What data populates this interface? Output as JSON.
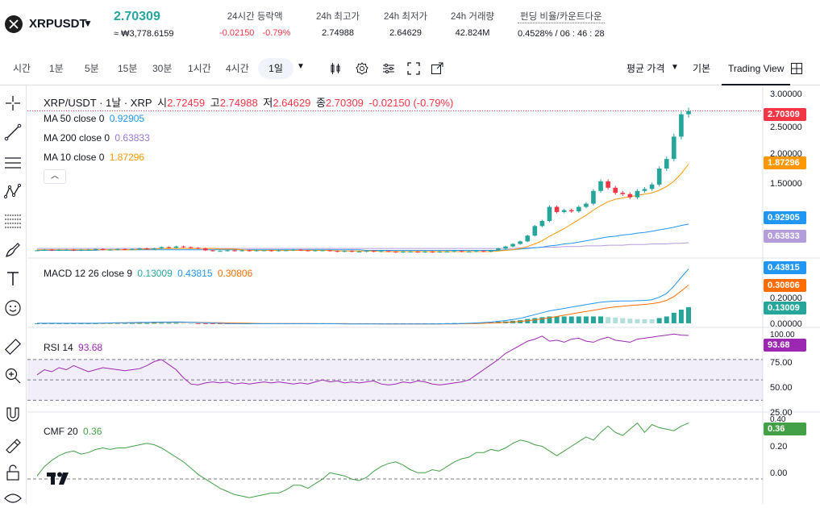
{
  "header": {
    "symbol": "XRPUSDT",
    "last_price": "2.70309",
    "krw_price": "≈ ₩3,778.6159",
    "stats": [
      {
        "label": "24시간 등락액",
        "value_a": "-0.02150",
        "value_b": "-0.79%"
      },
      {
        "label": "24h 최고가",
        "value": "2.74988"
      },
      {
        "label": "24h 최저가",
        "value": "2.64629"
      },
      {
        "label": "24h 거래량",
        "value": "42.824M"
      },
      {
        "label": "펀딩 비율/카운트다운",
        "value": "0.4528% / 06 : 46 : 28"
      }
    ]
  },
  "toolbar": {
    "timeframes": [
      "시간",
      "1분",
      "5분",
      "15분",
      "30분",
      "1시간",
      "4시간"
    ],
    "active_timeframe": "1일",
    "price_type": "평균 가격",
    "basic_tab": "기본",
    "tv_tab": "Trading View"
  },
  "legend": {
    "main_title": "XRP/USDT · 1날 · XRP",
    "o_lbl": "시",
    "o": "2.72459",
    "h_lbl": "고",
    "h": "2.74988",
    "l_lbl": "저",
    "l": "2.64629",
    "c_lbl": "종",
    "c": "2.70309",
    "change": "-0.02150 (-0.79%)",
    "ma50_lbl": "MA 50 close 0",
    "ma50": "0.92905",
    "ma200_lbl": "MA 200 close 0",
    "ma200": "0.63833",
    "ma10_lbl": "MA 10 close 0",
    "ma10": "1.87296",
    "macd_lbl": "MACD 12 26 close 9",
    "macd_hist": "0.13009",
    "macd_line": "0.43815",
    "macd_signal": "0.30806",
    "rsi_lbl": "RSI 14",
    "rsi": "93.68",
    "cmf_lbl": "CMF 20",
    "cmf": "0.36"
  },
  "axis": {
    "price_ticks": [
      "3.00000",
      "2.50000",
      "2.00000",
      "1.50000"
    ],
    "price_labels": {
      "last": "2.70309",
      "ma10": "1.87296",
      "ma50": "0.92905",
      "ma200": "0.63833"
    },
    "macd_ticks": [
      "0.20000",
      "0.00000"
    ],
    "macd_labels": {
      "line": "0.43815",
      "signal": "0.30806",
      "hist": "0.13009"
    },
    "rsi_ticks": [
      "100.00",
      "75.00",
      "50.00",
      "25.00"
    ],
    "rsi_label": "93.68",
    "cmf_ticks": [
      "0.40",
      "0.20",
      "0.00"
    ],
    "cmf_label": "0.36"
  },
  "colors": {
    "up": "#26a69a",
    "down": "#f23645",
    "ma10": "#ff9800",
    "ma50": "#2196f3",
    "ma200": "#b39ddb",
    "macd": "#2196f3",
    "signal": "#ff6d00",
    "rsi": "#9c27b0",
    "cmf": "#43a047"
  },
  "chart_data": [
    {
      "type": "candlestick",
      "title": "XRP/USDT · 1날 · XRP",
      "ylim": [
        0.45,
        3.05
      ],
      "closes": [
        0.52,
        0.53,
        0.52,
        0.53,
        0.53,
        0.52,
        0.53,
        0.53,
        0.54,
        0.53,
        0.53,
        0.54,
        0.53,
        0.54,
        0.55,
        0.54,
        0.55,
        0.57,
        0.56,
        0.58,
        0.57,
        0.56,
        0.55,
        0.52,
        0.51,
        0.51,
        0.52,
        0.51,
        0.52,
        0.51,
        0.52,
        0.52,
        0.51,
        0.52,
        0.52,
        0.53,
        0.52,
        0.51,
        0.52,
        0.52,
        0.51,
        0.5,
        0.51,
        0.5,
        0.5,
        0.51,
        0.5,
        0.51,
        0.5,
        0.49,
        0.5,
        0.5,
        0.49,
        0.5,
        0.49,
        0.5,
        0.5,
        0.51,
        0.5,
        0.5,
        0.51,
        0.5,
        0.52,
        0.55,
        0.58,
        0.62,
        0.66,
        0.75,
        0.9,
        0.98,
        1.2,
        1.12,
        1.15,
        1.13,
        1.2,
        1.25,
        1.45,
        1.6,
        1.5,
        1.42,
        1.4,
        1.35,
        1.45,
        1.48,
        1.55,
        1.8,
        1.95,
        2.3,
        2.65,
        2.7
      ],
      "ma10": [
        0.53,
        0.53,
        0.53,
        0.53,
        0.53,
        0.53,
        0.53,
        0.53,
        0.53,
        0.53,
        0.53,
        0.53,
        0.53,
        0.53,
        0.54,
        0.54,
        0.54,
        0.55,
        0.55,
        0.55,
        0.55,
        0.55,
        0.55,
        0.55,
        0.55,
        0.54,
        0.54,
        0.54,
        0.53,
        0.52,
        0.52,
        0.52,
        0.52,
        0.52,
        0.52,
        0.52,
        0.52,
        0.52,
        0.52,
        0.52,
        0.52,
        0.51,
        0.51,
        0.51,
        0.51,
        0.51,
        0.51,
        0.5,
        0.5,
        0.5,
        0.5,
        0.5,
        0.5,
        0.5,
        0.5,
        0.5,
        0.5,
        0.5,
        0.5,
        0.5,
        0.5,
        0.5,
        0.5,
        0.51,
        0.52,
        0.53,
        0.55,
        0.58,
        0.62,
        0.67,
        0.74,
        0.8,
        0.86,
        0.93,
        1.0,
        1.07,
        1.15,
        1.22,
        1.28,
        1.32,
        1.34,
        1.36,
        1.38,
        1.4,
        1.42,
        1.46,
        1.52,
        1.6,
        1.72,
        1.87
      ],
      "ma50": [
        0.52,
        0.52,
        0.52,
        0.52,
        0.52,
        0.52,
        0.52,
        0.52,
        0.52,
        0.53,
        0.53,
        0.53,
        0.53,
        0.53,
        0.53,
        0.53,
        0.53,
        0.53,
        0.53,
        0.53,
        0.53,
        0.53,
        0.53,
        0.53,
        0.53,
        0.53,
        0.53,
        0.53,
        0.53,
        0.53,
        0.53,
        0.53,
        0.53,
        0.53,
        0.53,
        0.53,
        0.53,
        0.53,
        0.53,
        0.53,
        0.53,
        0.53,
        0.53,
        0.53,
        0.53,
        0.52,
        0.52,
        0.52,
        0.52,
        0.52,
        0.52,
        0.52,
        0.52,
        0.52,
        0.52,
        0.52,
        0.52,
        0.52,
        0.52,
        0.52,
        0.52,
        0.52,
        0.52,
        0.52,
        0.53,
        0.53,
        0.54,
        0.55,
        0.56,
        0.57,
        0.59,
        0.6,
        0.62,
        0.63,
        0.65,
        0.67,
        0.69,
        0.71,
        0.73,
        0.74,
        0.76,
        0.77,
        0.79,
        0.8,
        0.82,
        0.84,
        0.86,
        0.88,
        0.91,
        0.93
      ],
      "ma200": [
        0.55,
        0.55,
        0.55,
        0.55,
        0.55,
        0.55,
        0.55,
        0.55,
        0.55,
        0.55,
        0.55,
        0.55,
        0.55,
        0.55,
        0.55,
        0.55,
        0.55,
        0.55,
        0.55,
        0.55,
        0.55,
        0.55,
        0.55,
        0.55,
        0.55,
        0.55,
        0.55,
        0.55,
        0.55,
        0.55,
        0.55,
        0.55,
        0.55,
        0.55,
        0.55,
        0.55,
        0.55,
        0.55,
        0.55,
        0.55,
        0.55,
        0.55,
        0.55,
        0.55,
        0.55,
        0.55,
        0.55,
        0.55,
        0.55,
        0.55,
        0.55,
        0.55,
        0.55,
        0.55,
        0.55,
        0.55,
        0.55,
        0.55,
        0.55,
        0.55,
        0.55,
        0.55,
        0.55,
        0.55,
        0.55,
        0.55,
        0.56,
        0.56,
        0.56,
        0.57,
        0.57,
        0.57,
        0.58,
        0.58,
        0.58,
        0.59,
        0.59,
        0.59,
        0.6,
        0.6,
        0.6,
        0.61,
        0.61,
        0.61,
        0.62,
        0.62,
        0.62,
        0.63,
        0.63,
        0.64
      ]
    },
    {
      "type": "line",
      "title": "MACD 12 26 close 9",
      "ylim": [
        -0.02,
        0.5
      ],
      "macd": [
        0,
        0,
        0,
        0,
        0,
        0,
        0,
        0,
        0,
        0.002,
        0.003,
        0.004,
        0.005,
        0.006,
        0.007,
        0.008,
        0.009,
        0.01,
        0.01,
        0.011,
        0.01,
        0.008,
        0.006,
        0.004,
        0.002,
        0,
        -0.002,
        -0.003,
        -0.004,
        -0.004,
        -0.004,
        -0.004,
        -0.003,
        -0.003,
        -0.003,
        -0.003,
        -0.003,
        -0.003,
        -0.003,
        -0.003,
        -0.004,
        -0.004,
        -0.005,
        -0.005,
        -0.005,
        -0.005,
        -0.005,
        -0.006,
        -0.006,
        -0.006,
        -0.006,
        -0.006,
        -0.006,
        -0.006,
        -0.005,
        -0.005,
        -0.004,
        -0.003,
        -0.002,
        0,
        0.003,
        0.006,
        0.01,
        0.016,
        0.022,
        0.03,
        0.04,
        0.055,
        0.07,
        0.085,
        0.1,
        0.11,
        0.12,
        0.13,
        0.14,
        0.15,
        0.16,
        0.17,
        0.175,
        0.178,
        0.18,
        0.18,
        0.182,
        0.185,
        0.19,
        0.21,
        0.24,
        0.3,
        0.37,
        0.438
      ],
      "signal": [
        0,
        0,
        0,
        0,
        0,
        0,
        0,
        0,
        0,
        0,
        0.001,
        0.002,
        0.003,
        0.004,
        0.005,
        0.006,
        0.006,
        0.007,
        0.007,
        0.008,
        0.008,
        0.008,
        0.007,
        0.006,
        0.005,
        0.004,
        0.003,
        0.002,
        0.001,
        0,
        -0.001,
        -0.002,
        -0.002,
        -0.002,
        -0.002,
        -0.002,
        -0.002,
        -0.002,
        -0.003,
        -0.003,
        -0.003,
        -0.003,
        -0.003,
        -0.004,
        -0.004,
        -0.004,
        -0.004,
        -0.005,
        -0.005,
        -0.005,
        -0.005,
        -0.005,
        -0.005,
        -0.005,
        -0.005,
        -0.005,
        -0.005,
        -0.005,
        -0.004,
        -0.003,
        -0.002,
        0,
        0.002,
        0.004,
        0.007,
        0.01,
        0.015,
        0.02,
        0.028,
        0.036,
        0.045,
        0.055,
        0.065,
        0.075,
        0.085,
        0.095,
        0.105,
        0.115,
        0.125,
        0.132,
        0.138,
        0.143,
        0.148,
        0.152,
        0.158,
        0.168,
        0.185,
        0.215,
        0.26,
        0.308
      ],
      "hist": [
        0,
        0,
        0,
        0,
        0,
        0,
        0,
        0,
        0,
        0.002,
        0.002,
        0.002,
        0.002,
        0.002,
        0.002,
        0.002,
        0.003,
        0.003,
        0.003,
        0.003,
        0.002,
        0,
        -0.001,
        -0.002,
        -0.003,
        -0.004,
        -0.005,
        -0.005,
        -0.005,
        -0.004,
        -0.003,
        -0.002,
        -0.001,
        -0.001,
        -0.001,
        -0.001,
        -0.001,
        -0.001,
        0,
        0,
        -0.001,
        -0.001,
        -0.002,
        -0.001,
        -0.001,
        -0.001,
        -0.001,
        -0.001,
        -0.001,
        -0.001,
        -0.001,
        -0.001,
        -0.001,
        -0.001,
        0,
        0,
        0.001,
        0.002,
        0.002,
        0.003,
        0.005,
        0.006,
        0.008,
        0.012,
        0.015,
        0.02,
        0.025,
        0.035,
        0.042,
        0.049,
        0.055,
        0.055,
        0.055,
        0.055,
        0.055,
        0.055,
        0.055,
        0.055,
        0.05,
        0.046,
        0.042,
        0.037,
        0.034,
        0.033,
        0.032,
        0.042,
        0.055,
        0.085,
        0.11,
        0.13
      ]
    },
    {
      "type": "line",
      "title": "RSI 14",
      "ylim": [
        20,
        100
      ],
      "values": [
        55,
        60,
        58,
        62,
        60,
        64,
        61,
        58,
        60,
        62,
        61,
        60,
        59,
        60,
        61,
        64,
        68,
        70,
        65,
        60,
        52,
        46,
        45,
        47,
        48,
        47,
        48,
        46,
        47,
        46,
        47,
        48,
        47,
        48,
        47,
        46,
        47,
        46,
        48,
        50,
        48,
        49,
        47,
        48,
        47,
        48,
        49,
        46,
        45,
        46,
        48,
        47,
        49,
        48,
        46,
        45,
        46,
        47,
        48,
        50,
        55,
        60,
        65,
        70,
        76,
        80,
        84,
        88,
        90,
        93,
        88,
        89,
        87,
        90,
        91,
        88,
        87,
        90,
        92,
        89,
        88,
        87,
        90,
        91,
        92,
        93,
        94,
        95,
        94,
        93.68
      ]
    },
    {
      "type": "line",
      "title": "CMF 20",
      "ylim": [
        -0.15,
        0.42
      ],
      "values": [
        0.02,
        0.08,
        0.12,
        0.15,
        0.17,
        0.18,
        0.16,
        0.17,
        0.19,
        0.2,
        0.19,
        0.2,
        0.2,
        0.21,
        0.22,
        0.23,
        0.22,
        0.2,
        0.17,
        0.14,
        0.11,
        0.07,
        0.03,
        0,
        -0.03,
        -0.06,
        -0.08,
        -0.1,
        -0.11,
        -0.12,
        -0.11,
        -0.1,
        -0.09,
        -0.09,
        -0.07,
        -0.04,
        -0.04,
        -0.06,
        -0.03,
        0,
        0.04,
        0.03,
        0.02,
        0,
        -0.01,
        0.01,
        0.05,
        0.08,
        0.1,
        0.11,
        0.09,
        0.06,
        0.04,
        0.04,
        0.06,
        0.05,
        0.08,
        0.11,
        0.13,
        0.14,
        0.17,
        0.17,
        0.19,
        0.18,
        0.2,
        0.23,
        0.25,
        0.24,
        0.22,
        0.21,
        0.18,
        0.15,
        0.18,
        0.21,
        0.24,
        0.27,
        0.25,
        0.3,
        0.34,
        0.3,
        0.28,
        0.32,
        0.36,
        0.3,
        0.35,
        0.33,
        0.32,
        0.31,
        0.34,
        0.36
      ]
    }
  ]
}
